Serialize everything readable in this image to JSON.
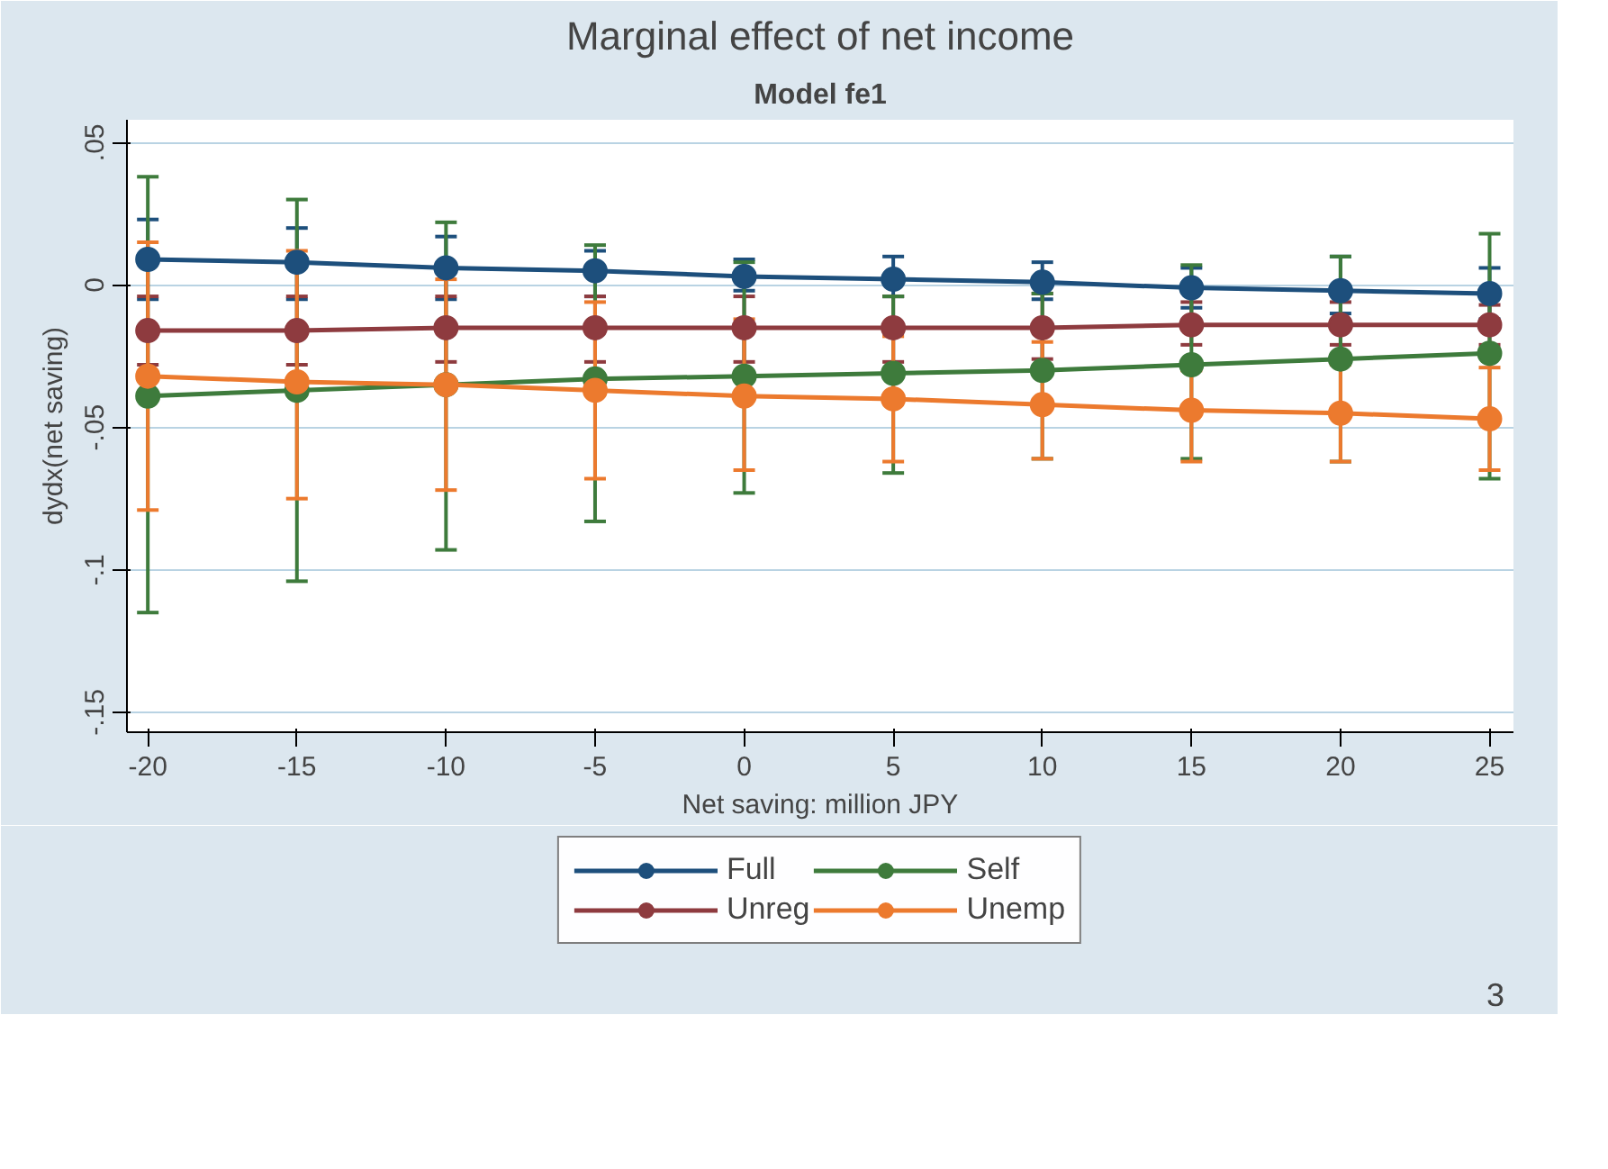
{
  "chart_data": {
    "type": "line",
    "title": "Marginal effect of net income",
    "subtitle": "Model fe1",
    "xlabel": "Net saving: million JPY",
    "ylabel": "dydx(net saving)",
    "x": [
      -20,
      -15,
      -10,
      -5,
      0,
      5,
      10,
      15,
      20,
      25
    ],
    "xlim": [
      -20.7,
      25.8
    ],
    "xticks": [
      -20,
      -15,
      -10,
      -5,
      0,
      5,
      10,
      15,
      20,
      25
    ],
    "ylim": [
      -0.157,
      0.058
    ],
    "yticks": [
      {
        "value": 0.05,
        "label": ".05"
      },
      {
        "value": 0,
        "label": "0"
      },
      {
        "value": -0.05,
        "label": "-.05"
      },
      {
        "value": -0.1,
        "label": "-.1"
      },
      {
        "value": -0.15,
        "label": "-.15"
      }
    ],
    "grid": "y",
    "legend": "bottom",
    "marker": "circle",
    "line_style": "solid",
    "series": [
      {
        "name": "Full",
        "color": "#1d4f7c",
        "values": [
          0.009,
          0.008,
          0.006,
          0.005,
          0.003,
          0.002,
          0.001,
          -0.001,
          -0.002,
          -0.003
        ],
        "errors": [
          [
            -0.005,
            0.023
          ],
          [
            -0.005,
            0.02
          ],
          [
            -0.005,
            0.017
          ],
          [
            -0.004,
            0.012
          ],
          [
            -0.002,
            0.009
          ],
          [
            -0.004,
            0.01
          ],
          [
            -0.005,
            0.008
          ],
          [
            -0.008,
            0.006
          ],
          [
            -0.01,
            0.01
          ],
          [
            -0.012,
            0.006
          ]
        ]
      },
      {
        "name": "Unreg",
        "color": "#8e3b3f",
        "values": [
          -0.016,
          -0.016,
          -0.015,
          -0.015,
          -0.015,
          -0.015,
          -0.015,
          -0.014,
          -0.014,
          -0.014
        ],
        "errors": [
          [
            -0.028,
            -0.004
          ],
          [
            -0.028,
            -0.004
          ],
          [
            -0.027,
            -0.004
          ],
          [
            -0.027,
            -0.004
          ],
          [
            -0.027,
            -0.004
          ],
          [
            -0.027,
            -0.004
          ],
          [
            -0.026,
            -0.003
          ],
          [
            -0.021,
            -0.006
          ],
          [
            -0.021,
            -0.006
          ],
          [
            -0.021,
            -0.007
          ]
        ]
      },
      {
        "name": "Self",
        "color": "#3e7b3c",
        "values": [
          -0.039,
          -0.037,
          -0.035,
          -0.033,
          -0.032,
          -0.031,
          -0.03,
          -0.028,
          -0.026,
          -0.024
        ],
        "errors": [
          [
            -0.115,
            0.038
          ],
          [
            -0.104,
            0.03
          ],
          [
            -0.093,
            0.022
          ],
          [
            -0.083,
            0.014
          ],
          [
            -0.073,
            0.008
          ],
          [
            -0.066,
            -0.004
          ],
          [
            -0.061,
            -0.003
          ],
          [
            -0.061,
            0.007
          ],
          [
            -0.062,
            0.01
          ],
          [
            -0.068,
            0.018
          ]
        ]
      },
      {
        "name": "Unemp",
        "color": "#ec7a2e",
        "values": [
          -0.032,
          -0.034,
          -0.035,
          -0.037,
          -0.039,
          -0.04,
          -0.042,
          -0.044,
          -0.045,
          -0.047
        ],
        "errors": [
          [
            -0.079,
            0.015
          ],
          [
            -0.075,
            0.012
          ],
          [
            -0.072,
            0.002
          ],
          [
            -0.068,
            -0.006
          ],
          [
            -0.065,
            -0.012
          ],
          [
            -0.062,
            -0.018
          ],
          [
            -0.061,
            -0.02
          ],
          [
            -0.062,
            -0.03
          ],
          [
            -0.062,
            -0.028
          ],
          [
            -0.065,
            -0.029
          ]
        ]
      }
    ],
    "annotations": [
      "3"
    ]
  }
}
